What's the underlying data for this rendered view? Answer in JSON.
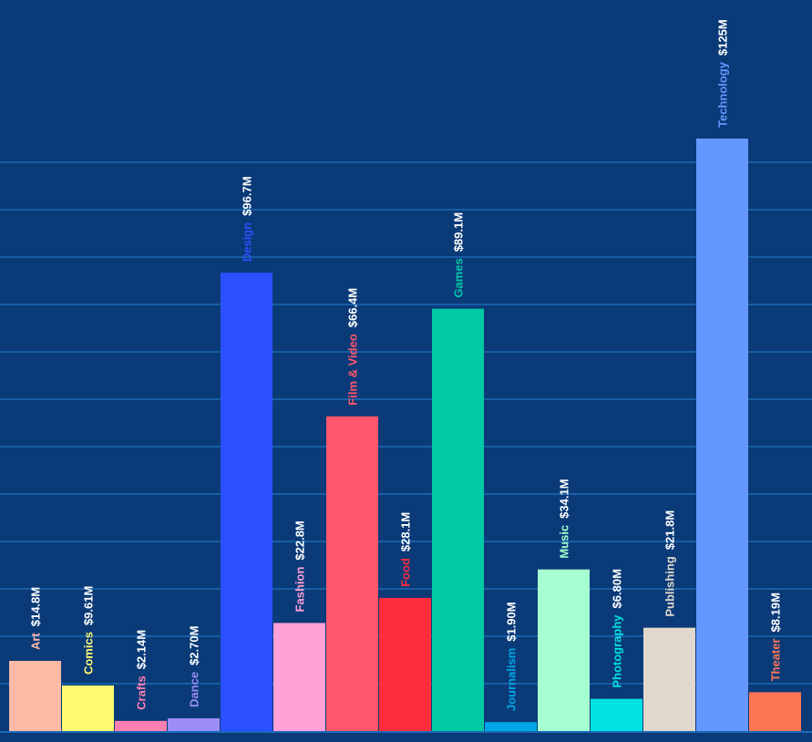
{
  "chart_data": {
    "type": "bar",
    "title": "",
    "xlabel": "",
    "ylabel": "",
    "ylim": [
      0,
      155
    ],
    "grid": true,
    "legend": "none",
    "background": "#0a3a78",
    "gridline_color": "#1e74c0",
    "axis_line_color": "#1a6ab8",
    "value_label_color": "#ffffff",
    "categories": [
      "Art",
      "Comics",
      "Crafts",
      "Dance",
      "Design",
      "Fashion",
      "Film & Video",
      "Food",
      "Games",
      "Journalism",
      "Music",
      "Photography",
      "Publishing",
      "Technology",
      "Theater"
    ],
    "values": [
      14.8,
      9.61,
      2.14,
      2.7,
      96.7,
      22.8,
      66.4,
      28.1,
      89.1,
      1.9,
      34.1,
      6.8,
      21.8,
      125,
      8.19
    ],
    "value_labels": [
      "$14.8M",
      "$9.61M",
      "$2.14M",
      "$2.70M",
      "$96.7M",
      "$22.8M",
      "$66.4M",
      "$28.1M",
      "$89.1M",
      "$1.90M",
      "$34.1M",
      "$6.80M",
      "$21.8M",
      "$125M",
      "$8.19M"
    ],
    "colors": [
      "#ffbba5",
      "#fffa72",
      "#ff7eb1",
      "#9b8df5",
      "#2a50ff",
      "#ffa1d6",
      "#ff566b",
      "#fd2d3e",
      "#00c9a6",
      "#00a6e6",
      "#a6ffd1",
      "#00e2e1",
      "#e0d8cc",
      "#6497ff",
      "#ff7655"
    ]
  }
}
